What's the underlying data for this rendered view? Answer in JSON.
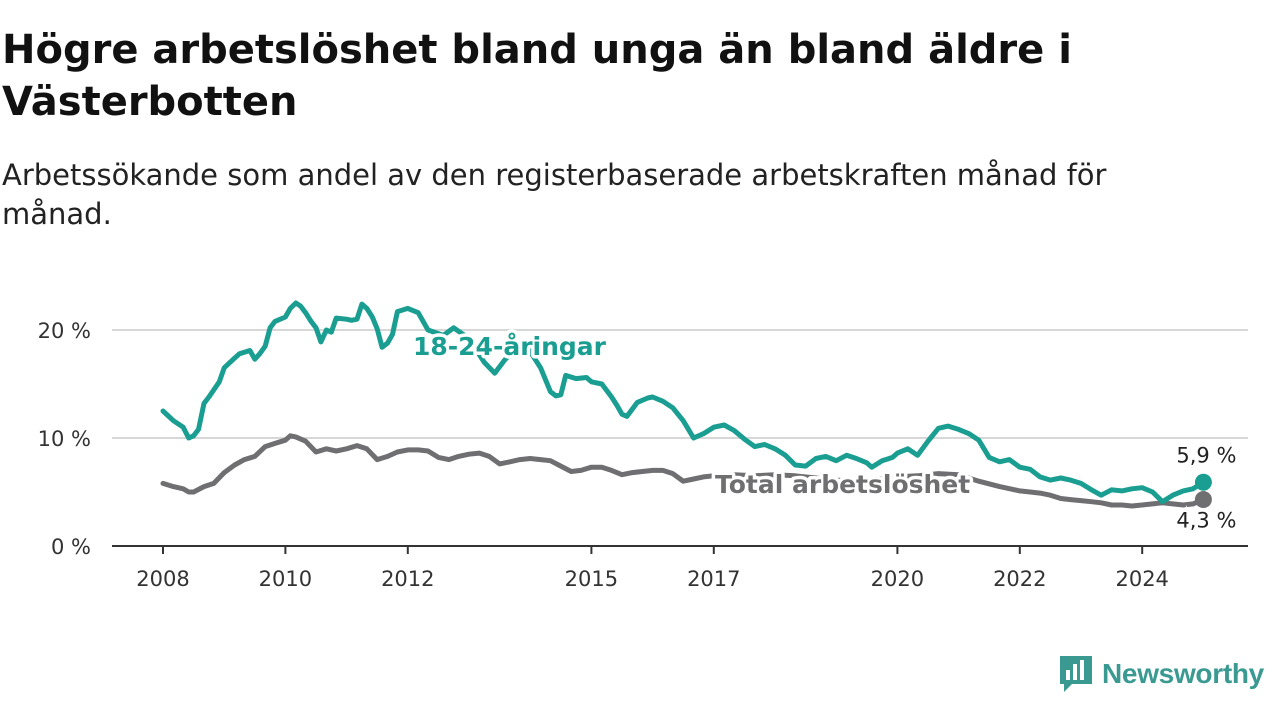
{
  "header": {
    "title": "Högre arbetslöshet bland unga än bland äldre i Västerbotten",
    "subtitle": "Arbetssökande som andel av den registerbaserade arbetskraften månad för månad."
  },
  "brand": {
    "name": "Newsworthy",
    "icon": "newsworthy-logo-icon",
    "color": "#3a9a92"
  },
  "chart_data": {
    "type": "line",
    "title": "Högre arbetslöshet bland unga än bland äldre i Västerbotten",
    "subtitle": "Arbetssökande som andel av den registerbaserade arbetskraften månad för månad.",
    "xlabel": "",
    "ylabel": "",
    "xlim": [
      2008,
      2025.33
    ],
    "ylim": [
      0,
      23
    ],
    "x_ticks": [
      2008,
      2010,
      2012,
      2015,
      2017,
      2020,
      2022,
      2024
    ],
    "x_tick_labels": [
      "2008",
      "2010",
      "2012",
      "2015",
      "2017",
      "2020",
      "2022",
      "2024"
    ],
    "y_ticks": [
      0,
      10,
      20
    ],
    "y_tick_labels": [
      "0 %",
      "10 %",
      "20 %"
    ],
    "grid": "horizontal",
    "legend": "inline",
    "series": [
      {
        "name": "18-24-åringar",
        "color": "#1a9e92",
        "end_label": "5,9 %",
        "x": [
          2008.0,
          2008.17,
          2008.33,
          2008.42,
          2008.5,
          2008.58,
          2008.67,
          2008.75,
          2008.92,
          2009.0,
          2009.17,
          2009.25,
          2009.42,
          2009.5,
          2009.58,
          2009.67,
          2009.75,
          2009.83,
          2010.0,
          2010.08,
          2010.17,
          2010.25,
          2010.33,
          2010.42,
          2010.5,
          2010.58,
          2010.67,
          2010.75,
          2010.83,
          2011.0,
          2011.08,
          2011.17,
          2011.25,
          2011.33,
          2011.42,
          2011.5,
          2011.58,
          2011.67,
          2011.75,
          2011.83,
          2012.0,
          2012.17,
          2012.33,
          2012.58,
          2012.75,
          2013.0,
          2013.25,
          2013.42,
          2013.58,
          2013.75,
          2013.92,
          2014.0,
          2014.17,
          2014.33,
          2014.42,
          2014.5,
          2014.58,
          2014.75,
          2014.92,
          2015.0,
          2015.17,
          2015.33,
          2015.42,
          2015.5,
          2015.58,
          2015.75,
          2015.92,
          2016.0,
          2016.17,
          2016.33,
          2016.5,
          2016.67,
          2016.83,
          2017.0,
          2017.17,
          2017.33,
          2017.5,
          2017.67,
          2017.83,
          2018.0,
          2018.17,
          2018.33,
          2018.5,
          2018.67,
          2018.83,
          2019.0,
          2019.17,
          2019.33,
          2019.5,
          2019.58,
          2019.75,
          2019.92,
          2020.0,
          2020.17,
          2020.33,
          2020.5,
          2020.67,
          2020.83,
          2021.0,
          2021.17,
          2021.33,
          2021.5,
          2021.67,
          2021.83,
          2022.0,
          2022.17,
          2022.33,
          2022.5,
          2022.67,
          2022.83,
          2023.0,
          2023.17,
          2023.33,
          2023.5,
          2023.67,
          2023.83,
          2024.0,
          2024.17,
          2024.33,
          2024.5,
          2024.67,
          2024.83,
          2025.0
        ],
        "y": [
          12.5,
          11.6,
          11.0,
          10.0,
          10.2,
          10.8,
          13.2,
          13.8,
          15.2,
          16.5,
          17.4,
          17.8,
          18.1,
          17.3,
          17.8,
          18.5,
          20.2,
          20.8,
          21.2,
          22.0,
          22.5,
          22.2,
          21.6,
          20.8,
          20.2,
          18.9,
          20.0,
          19.8,
          21.1,
          21.0,
          20.9,
          21.0,
          22.4,
          22.0,
          21.2,
          20.1,
          18.4,
          18.8,
          19.6,
          21.7,
          22.0,
          21.6,
          20.0,
          19.5,
          20.2,
          19.2,
          17.0,
          16.0,
          17.2,
          18.2,
          18.5,
          18.0,
          16.5,
          14.3,
          13.9,
          14.0,
          15.8,
          15.5,
          15.6,
          15.2,
          15.0,
          13.8,
          13.0,
          12.2,
          12.0,
          13.3,
          13.7,
          13.8,
          13.4,
          12.8,
          11.6,
          10.0,
          10.4,
          11.0,
          11.2,
          10.7,
          9.9,
          9.2,
          9.4,
          9.0,
          8.4,
          7.5,
          7.4,
          8.1,
          8.3,
          7.9,
          8.4,
          8.1,
          7.7,
          7.3,
          7.9,
          8.2,
          8.6,
          9.0,
          8.4,
          9.7,
          10.9,
          11.1,
          10.8,
          10.4,
          9.8,
          8.2,
          7.8,
          8.0,
          7.3,
          7.1,
          6.4,
          6.1,
          6.3,
          6.1,
          5.8,
          5.2,
          4.7,
          5.2,
          5.1,
          5.3,
          5.4,
          5.0,
          4.1,
          4.7,
          5.1,
          5.3,
          5.9
        ]
      },
      {
        "name": "Total arbetslöshet",
        "color": "#6f6f72",
        "end_label": "4,3 %",
        "x": [
          2008.0,
          2008.17,
          2008.33,
          2008.42,
          2008.5,
          2008.67,
          2008.83,
          2009.0,
          2009.17,
          2009.33,
          2009.5,
          2009.67,
          2009.83,
          2010.0,
          2010.08,
          2010.17,
          2010.33,
          2010.5,
          2010.67,
          2010.83,
          2011.0,
          2011.17,
          2011.33,
          2011.5,
          2011.67,
          2011.83,
          2012.0,
          2012.17,
          2012.33,
          2012.5,
          2012.67,
          2012.83,
          2013.0,
          2013.17,
          2013.33,
          2013.5,
          2013.67,
          2013.83,
          2014.0,
          2014.17,
          2014.33,
          2014.5,
          2014.67,
          2014.83,
          2015.0,
          2015.17,
          2015.33,
          2015.5,
          2015.67,
          2015.83,
          2016.0,
          2016.17,
          2016.33,
          2016.5,
          2016.67,
          2016.83,
          2017.0,
          2017.33,
          2017.67,
          2018.0,
          2018.33,
          2018.67,
          2019.0,
          2019.33,
          2019.67,
          2020.0,
          2020.33,
          2020.67,
          2021.0,
          2021.33,
          2021.67,
          2022.0,
          2022.17,
          2022.33,
          2022.5,
          2022.67,
          2022.83,
          2023.0,
          2023.17,
          2023.33,
          2023.5,
          2023.67,
          2023.83,
          2024.0,
          2024.17,
          2024.33,
          2024.5,
          2024.67,
          2024.83,
          2025.0
        ],
        "y": [
          5.8,
          5.5,
          5.3,
          5.0,
          5.0,
          5.5,
          5.8,
          6.8,
          7.5,
          8.0,
          8.3,
          9.2,
          9.5,
          9.8,
          10.2,
          10.1,
          9.7,
          8.7,
          9.0,
          8.8,
          9.0,
          9.3,
          9.0,
          8.0,
          8.3,
          8.7,
          8.9,
          8.9,
          8.8,
          8.2,
          8.0,
          8.3,
          8.5,
          8.6,
          8.3,
          7.6,
          7.8,
          8.0,
          8.1,
          8.0,
          7.9,
          7.4,
          6.9,
          7.0,
          7.3,
          7.3,
          7.0,
          6.6,
          6.8,
          6.9,
          7.0,
          7.0,
          6.7,
          6.0,
          6.2,
          6.4,
          6.5,
          6.6,
          6.5,
          6.6,
          6.5,
          6.3,
          6.1,
          6.0,
          6.2,
          6.4,
          6.5,
          6.7,
          6.6,
          6.0,
          5.5,
          5.1,
          5.0,
          4.9,
          4.7,
          4.4,
          4.3,
          4.2,
          4.1,
          4.0,
          3.8,
          3.8,
          3.7,
          3.8,
          3.9,
          4.0,
          3.9,
          3.8,
          3.9,
          4.3
        ]
      }
    ]
  }
}
